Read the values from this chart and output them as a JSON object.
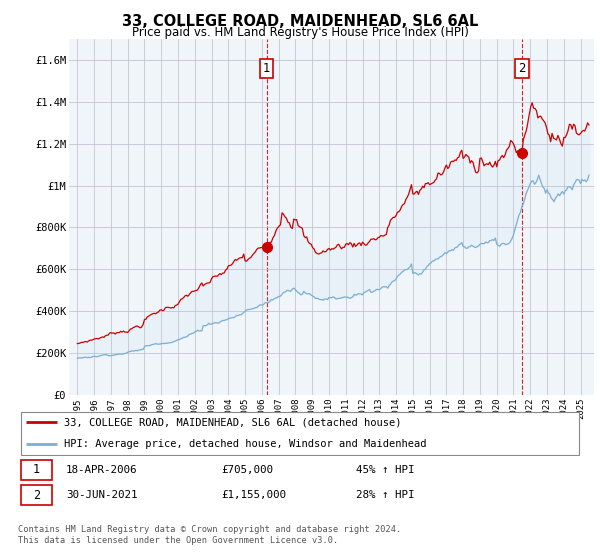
{
  "title": "33, COLLEGE ROAD, MAIDENHEAD, SL6 6AL",
  "subtitle": "Price paid vs. HM Land Registry's House Price Index (HPI)",
  "red_label": "33, COLLEGE ROAD, MAIDENHEAD, SL6 6AL (detached house)",
  "blue_label": "HPI: Average price, detached house, Windsor and Maidenhead",
  "transaction1_date": "18-APR-2006",
  "transaction1_price": "£705,000",
  "transaction1_hpi": "45% ↑ HPI",
  "transaction2_date": "30-JUN-2021",
  "transaction2_price": "£1,155,000",
  "transaction2_hpi": "28% ↑ HPI",
  "footer": "Contains HM Land Registry data © Crown copyright and database right 2024.\nThis data is licensed under the Open Government Licence v3.0.",
  "red_color": "#cc0000",
  "blue_color": "#7ab0d4",
  "fill_color": "#d6e8f5",
  "dashed_color": "#cc0000",
  "background_color": "#f0f5fa",
  "ylim_min": 0,
  "ylim_max": 1700000,
  "yticks": [
    0,
    200000,
    400000,
    600000,
    800000,
    1000000,
    1200000,
    1400000,
    1600000
  ],
  "ytick_labels": [
    "£0",
    "£200K",
    "£400K",
    "£600K",
    "£800K",
    "£1M",
    "£1.2M",
    "£1.4M",
    "£1.6M"
  ],
  "transaction1_x": 2006.29,
  "transaction1_y": 705000,
  "transaction2_x": 2021.5,
  "transaction2_y": 1155000,
  "xmin": 1994.5,
  "xmax": 2025.8
}
